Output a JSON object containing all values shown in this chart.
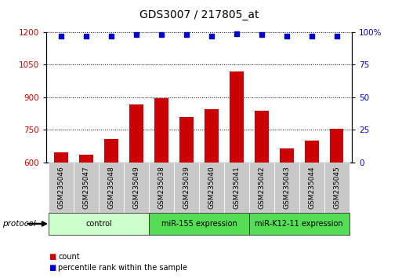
{
  "title": "GDS3007 / 217805_at",
  "samples": [
    "GSM235046",
    "GSM235047",
    "GSM235048",
    "GSM235049",
    "GSM235038",
    "GSM235039",
    "GSM235040",
    "GSM235041",
    "GSM235042",
    "GSM235043",
    "GSM235044",
    "GSM235045"
  ],
  "counts": [
    648,
    638,
    710,
    868,
    895,
    810,
    845,
    1020,
    840,
    665,
    700,
    755
  ],
  "percentile_ranks": [
    97,
    97,
    97,
    98,
    98,
    98,
    97,
    98.5,
    98,
    97,
    97,
    97
  ],
  "ylim_left": [
    600,
    1200
  ],
  "ylim_right": [
    0,
    100
  ],
  "yticks_left": [
    600,
    750,
    900,
    1050,
    1200
  ],
  "yticks_right": [
    0,
    25,
    50,
    75,
    100
  ],
  "bar_color": "#cc0000",
  "dot_color": "#0000cc",
  "groups": [
    {
      "label": "control",
      "start": 0,
      "end": 4,
      "color": "#ccffcc"
    },
    {
      "label": "miR-155 expression",
      "start": 4,
      "end": 8,
      "color": "#55dd55"
    },
    {
      "label": "miR-K12-11 expression",
      "start": 8,
      "end": 12,
      "color": "#55dd55"
    }
  ],
  "group_label_prefix": "protocol",
  "legend_count_label": "count",
  "legend_percentile_label": "percentile rank within the sample",
  "bg_xticklabels": "#c8c8c8",
  "title_fontsize": 10,
  "tick_fontsize": 7.5,
  "bar_width": 0.55
}
